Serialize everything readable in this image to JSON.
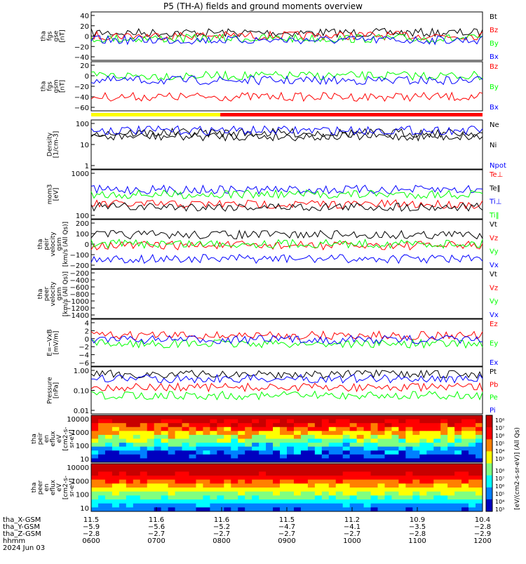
{
  "title": "P5 (TH-A) fields and ground moments overview",
  "colors": {
    "black": "#000000",
    "red": "#ff0000",
    "green": "#00ff00",
    "blue": "#0000ff",
    "yellow": "#ffff00"
  },
  "chart_data": [
    {
      "type": "line",
      "panel": "fgs-gse",
      "ylabel": [
        "tha",
        "fgs",
        "gse",
        "[nT]"
      ],
      "yticks": [
        "40",
        "20",
        "0",
        "−20",
        "−40"
      ],
      "ylim": [
        -45,
        55
      ],
      "series": [
        {
          "name": "Bt",
          "color": "#000000",
          "level": 12
        },
        {
          "name": "Bz",
          "color": "#ff0000",
          "level": 6
        },
        {
          "name": "By",
          "color": "#00ff00",
          "level": 0
        },
        {
          "name": "Bx",
          "color": "#0000ff",
          "level": -3
        }
      ]
    },
    {
      "type": "line",
      "panel": "fgs-gsm",
      "ylabel": [
        "tha",
        "fgs",
        "gsm",
        "[nT]"
      ],
      "yticks": [
        "20",
        "0",
        "−20",
        "−40",
        "−60"
      ],
      "ylim": [
        -75,
        30
      ],
      "series": [
        {
          "name": "Bz",
          "color": "#ff0000",
          "level": -45
        },
        {
          "name": "By",
          "color": "#00ff00",
          "level": 0
        },
        {
          "name": "Bx",
          "color": "#0000ff",
          "level": -10
        }
      ]
    },
    {
      "type": "line",
      "panel": "density",
      "ylabel": [
        "Density",
        "[1/cm-3]"
      ],
      "log": true,
      "yticks": [
        "100",
        "10",
        "1"
      ],
      "ylim": [
        0.5,
        130
      ],
      "series": [
        {
          "name": "Ne",
          "color": "#000000",
          "level": 30
        },
        {
          "name": "Ni",
          "color": "#000000",
          "level": 20
        },
        {
          "name": "Npot",
          "color": "#0000ff",
          "level": 40
        }
      ]
    },
    {
      "type": "line",
      "panel": "temperature",
      "ylabel": [
        "mom3",
        "[eV]"
      ],
      "log": true,
      "yticks": [
        "1000",
        "100"
      ],
      "ylim": [
        8,
        1800
      ],
      "series": [
        {
          "name": "Te⊥",
          "color": "#ff0000",
          "level": 40
        },
        {
          "name": "Te‖",
          "color": "#000000",
          "level": 30
        },
        {
          "name": "Ti⊥",
          "color": "#0000ff",
          "level": 200
        },
        {
          "name": "Ti‖",
          "color": "#00ff00",
          "level": 120
        }
      ]
    },
    {
      "type": "line",
      "panel": "peir-velocity",
      "ylabel": [
        "tha",
        "peir",
        "velocity",
        "gsm",
        "[km/s (All Qs)]"
      ],
      "yticks": [
        "200",
        "100",
        "0",
        "−100",
        "−200"
      ],
      "ylim": [
        -260,
        290
      ],
      "series": [
        {
          "name": "Vt",
          "color": "#000000",
          "level": 120
        },
        {
          "name": "Vz",
          "color": "#ff0000",
          "level": 0
        },
        {
          "name": "Vy",
          "color": "#00ff00",
          "level": 20
        },
        {
          "name": "Vx",
          "color": "#0000ff",
          "level": -150
        }
      ]
    },
    {
      "type": "line",
      "panel": "peer-velocity",
      "ylabel": [
        "tha",
        "peer",
        "velocity",
        "gsm",
        "[km/s (All Qs)]"
      ],
      "yticks": [
        "−200",
        "−400",
        "−600",
        "−800",
        "−1000",
        "−1200",
        "−1400"
      ],
      "ylim": [
        -1450,
        0
      ],
      "series": [
        {
          "name": "Vt",
          "color": "#000000",
          "level": null
        },
        {
          "name": "Vz",
          "color": "#ff0000",
          "level": null
        },
        {
          "name": "Vy",
          "color": "#00ff00",
          "level": null
        },
        {
          "name": "Vx",
          "color": "#0000ff",
          "level": null
        }
      ]
    },
    {
      "type": "line",
      "panel": "efield",
      "ylabel": [
        "E=−VxB",
        "[mV/m]"
      ],
      "yticks": [
        "4",
        "2",
        "0",
        "−2",
        "−4",
        "−6"
      ],
      "ylim": [
        -6.5,
        5
      ],
      "series": [
        {
          "name": "Ez",
          "color": "#ff0000",
          "level": 1
        },
        {
          "name": "Ey",
          "color": "#00ff00",
          "level": -1
        },
        {
          "name": "Ex",
          "color": "#0000ff",
          "level": 0
        }
      ]
    },
    {
      "type": "line",
      "panel": "pressure",
      "ylabel": [
        "Pressure",
        "[nPa]"
      ],
      "log": true,
      "yticks": [
        "1.00",
        "0.10",
        "0.01"
      ],
      "ylim": [
        0.004,
        2.5
      ],
      "series": [
        {
          "name": "Pt",
          "color": "#000000",
          "level": 0.9
        },
        {
          "name": "Pb",
          "color": "#ff0000",
          "level": 0.15
        },
        {
          "name": "Pe",
          "color": "#00ff00",
          "level": 0.05
        },
        {
          "name": "Pi",
          "color": "#0000ff",
          "level": 0.5
        }
      ]
    },
    {
      "type": "heatmap",
      "panel": "peir-spectrogram",
      "ylabel": [
        "tha",
        "peir",
        "en",
        "eflux",
        "eV",
        "[cm2-s-",
        "sr-eV]"
      ],
      "log": true,
      "yticks": [
        "10000",
        "1000",
        "100",
        "10"
      ],
      "ylim": [
        5,
        25000
      ]
    },
    {
      "type": "heatmap",
      "panel": "peer-spectrogram",
      "ylabel": [
        "tha",
        "peer",
        "en",
        "eflux",
        "eV",
        "[cm2-s-",
        "sr-eV]"
      ],
      "log": true,
      "yticks": [
        "10000",
        "1000",
        "100",
        "10"
      ],
      "ylim": [
        5,
        25000
      ]
    }
  ],
  "colorbar": {
    "label": "[eV/(cm2-s-sr-eV)] (All Qs)",
    "ticks": [
      "10⁸",
      "10⁷",
      "10⁶",
      "10⁵",
      "10⁴",
      "10³"
    ],
    "ticks2": [
      "10⁸",
      "10⁷",
      "10⁶",
      "10⁵",
      "10⁴",
      "10³"
    ]
  },
  "state_bar": [
    "yellow",
    "red"
  ],
  "xaxis": {
    "rows": [
      {
        "label": "tha_X-GSM",
        "values": [
          "11.5",
          "11.6",
          "11.6",
          "11.5",
          "11.2",
          "10.9",
          "10.4"
        ]
      },
      {
        "label": "tha_Y-GSM",
        "values": [
          "−5.9",
          "−5.6",
          "−5.2",
          "−4.7",
          "−4.1",
          "−3.5",
          "−2.8"
        ]
      },
      {
        "label": "tha_Z-GSM",
        "values": [
          "−2.8",
          "−2.7",
          "−2.7",
          "−2.7",
          "−2.7",
          "−2.8",
          "−2.9"
        ]
      },
      {
        "label": "hhmm",
        "values": [
          "0600",
          "0700",
          "0800",
          "0900",
          "1000",
          "1100",
          "1200"
        ]
      }
    ],
    "date": "2024 Jun 03"
  }
}
